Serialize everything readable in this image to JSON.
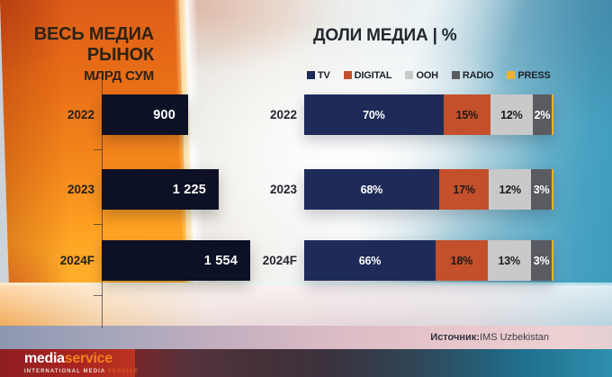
{
  "titles": {
    "left_title": "ВЕСЬ МЕДИА РЫНОК",
    "left_subtitle": "МЛРД СУМ",
    "right_title": "ДОЛИ МЕДИА | %"
  },
  "source": {
    "bold": "Источник:",
    "rest": "IMS Uzbekistan"
  },
  "logo": {
    "media": "media",
    "service": "service",
    "tagline_left": "INTERNATIONAL MEDIA ",
    "tagline_right": "SERVICE"
  },
  "colors": {
    "left_bar": "#0d1126",
    "tv": "#1e2b58",
    "digital": "#c3502a",
    "ooh": "#c9c9c9",
    "radio": "#5a5b60",
    "press": "#edb22b",
    "orange_wall": "#f5891c",
    "teal_right": "#3d9ab9"
  },
  "chart_data": [
    {
      "type": "bar",
      "orientation": "horizontal",
      "title": "ВЕСЬ МЕДИА РЫНОК",
      "unit": "МЛРД СУМ",
      "categories": [
        "2022",
        "2023",
        "2024F"
      ],
      "values": [
        900,
        1225,
        1554
      ],
      "value_labels": [
        "900",
        "1 225",
        "1 554"
      ],
      "xlim": [
        0,
        1554
      ],
      "bar_color": "#0d1126",
      "grid": false
    },
    {
      "type": "bar",
      "stacked": true,
      "orientation": "horizontal",
      "title": "ДОЛИ МЕДИА | %",
      "categories": [
        "2022",
        "2023",
        "2024F"
      ],
      "series": [
        {
          "name": "TV",
          "color": "#1e2b58",
          "label_color": "#ffffff",
          "values": [
            70,
            68,
            66
          ],
          "labels": [
            "70%",
            "68%",
            "66%"
          ]
        },
        {
          "name": "DIGITAL",
          "color": "#c3502a",
          "label_color": "#1d1a1a",
          "values": [
            15,
            17,
            18
          ],
          "labels": [
            "15%",
            "17%",
            "18%"
          ]
        },
        {
          "name": "OOH",
          "color": "#c9c9c9",
          "label_color": "#1d1a1a",
          "values": [
            12,
            12,
            13
          ],
          "labels": [
            "12%",
            "12%",
            "13%"
          ]
        },
        {
          "name": "RADIO",
          "color": "#5a5b60",
          "label_color": "#ffffff",
          "values": [
            2,
            3,
            3
          ],
          "labels": [
            "2%",
            "3%",
            "3%"
          ]
        },
        {
          "name": "PRESS",
          "color": "#edb22b",
          "label_color": "#ffffff",
          "values": [
            1,
            1,
            1
          ],
          "labels": [
            "",
            "",
            ""
          ]
        }
      ],
      "legend_position": "top",
      "grid": false
    }
  ]
}
